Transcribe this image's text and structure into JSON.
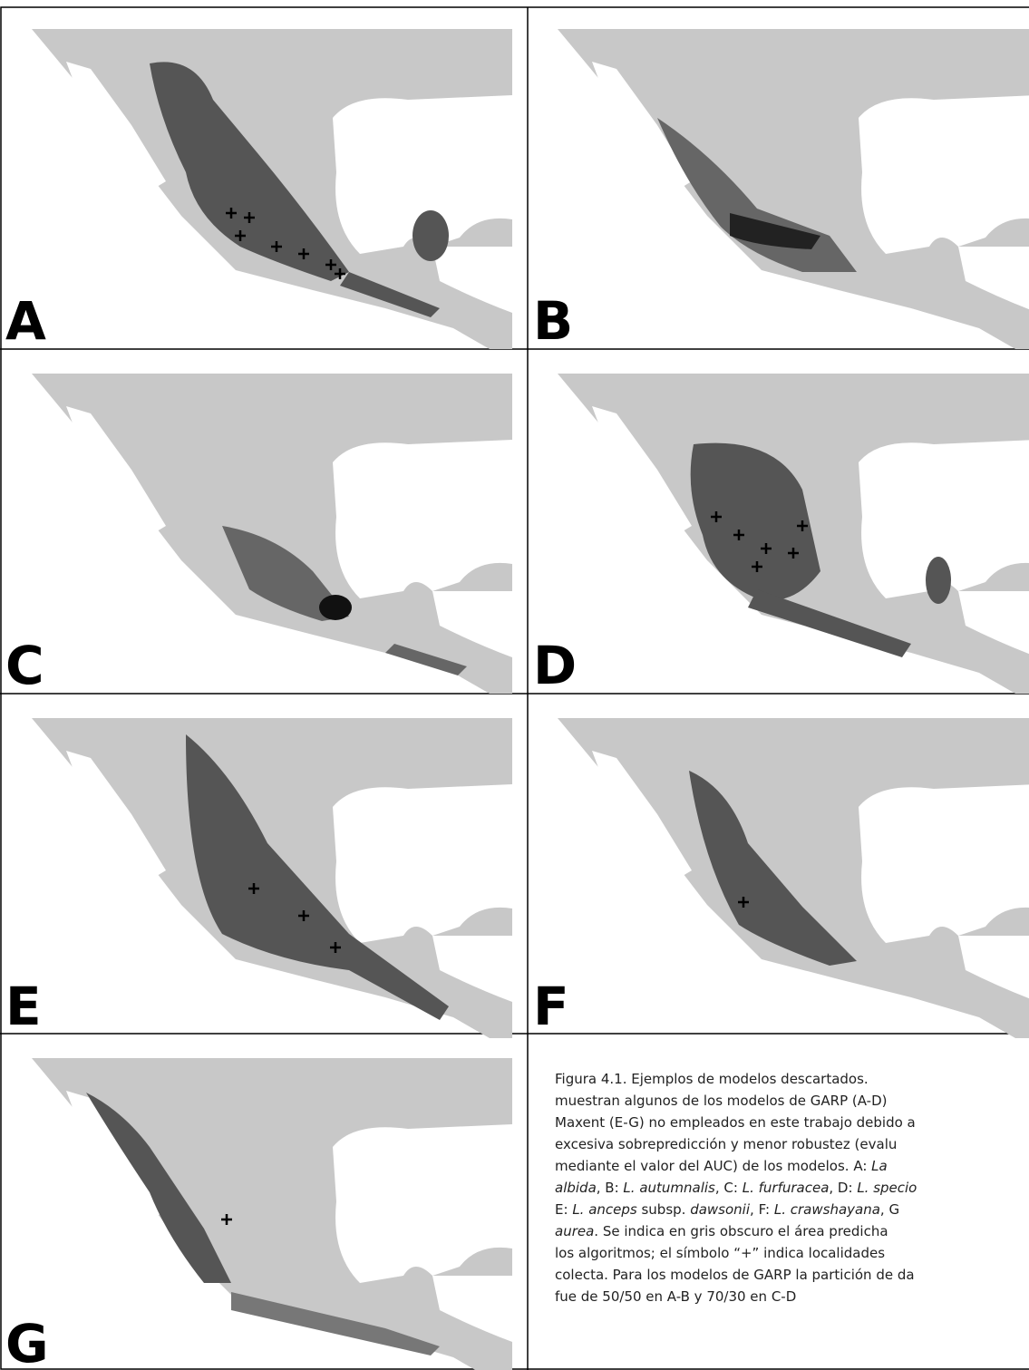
{
  "panels": [
    {
      "label": "A"
    },
    {
      "label": "B"
    },
    {
      "label": "C"
    },
    {
      "label": "D"
    },
    {
      "label": "E"
    },
    {
      "label": "F"
    },
    {
      "label": "G"
    }
  ],
  "caption": {
    "lines": [
      [
        "Figura 4.1. Ejemplos de modelos descartados."
      ],
      [
        "muestran algunos de los modelos de GARP (A-D)"
      ],
      [
        "Maxent (E-G) no empleados en este trabajo debido a"
      ],
      [
        "excesiva sobrepredicción y menor robustez (evalu"
      ],
      [
        "mediante el valor del AUC) de los modelos. A: ",
        {
          "italic": "La"
        }
      ],
      [
        {
          "italic": "albida"
        },
        ", B: ",
        {
          "italic": "L. autumnalis"
        },
        ", C: ",
        {
          "italic": "L. furfuracea"
        },
        ", D: ",
        {
          "italic": "L. specio"
        }
      ],
      [
        "E: ",
        {
          "italic": "L. anceps"
        },
        " subsp. ",
        {
          "italic": "dawsonii"
        },
        ", F: ",
        {
          "italic": "L. crawshayana"
        },
        ", G"
      ],
      [
        {
          "italic": "aurea"
        },
        ". Se indica en gris obscuro  el área predicha "
      ],
      [
        "los algoritmos; el símbolo “+” indica localidades "
      ],
      [
        "colecta. Para los modelos de GARP la partición de da"
      ],
      [
        "fue de 50/50 en A-B y 70/30 en C-D"
      ]
    ]
  }
}
